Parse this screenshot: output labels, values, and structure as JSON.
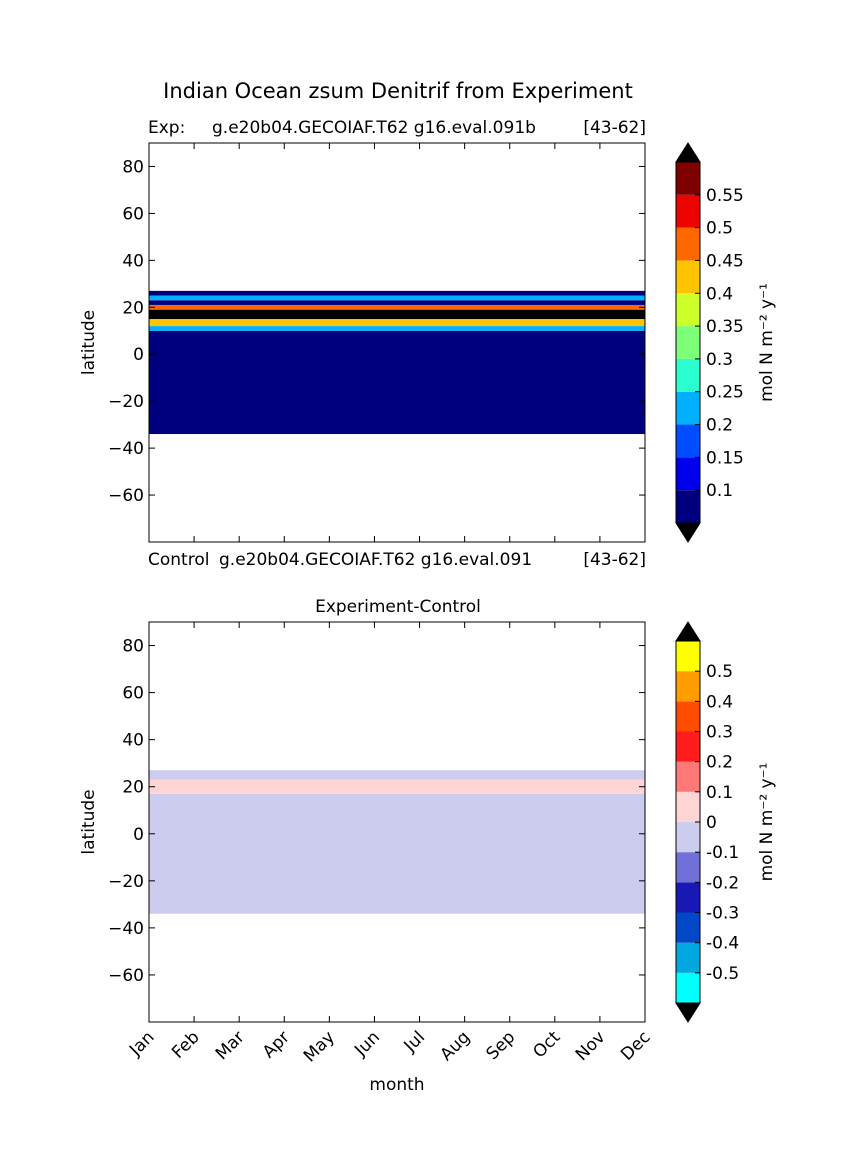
{
  "title": "Indian Ocean zsum Denitrif from Experiment",
  "panels": [
    {
      "id": "top",
      "header_left": "Exp:",
      "header_center": "g.e20b04.GECOIAF.T62 g16.eval.091b",
      "header_right": "[43-62]",
      "ylabel": "latitude"
    },
    {
      "id": "bottom",
      "header_left": "Control",
      "header_center": "g.e20b04.GECOIAF.T62 g16.eval.091",
      "header_right": "[43-62]",
      "title": "Experiment-Control",
      "ylabel": "latitude",
      "xlabel": "month"
    }
  ],
  "chart_data": [
    {
      "type": "heatmap",
      "subtitle": "Exp:    g.e20b04.GECOIAF.T62 g16.eval.091b [43-62]",
      "xlabel": "",
      "ylabel": "latitude",
      "x": [
        "Jan",
        "Feb",
        "Mar",
        "Apr",
        "May",
        "Jun",
        "Jul",
        "Aug",
        "Sep",
        "Oct",
        "Nov",
        "Dec"
      ],
      "ylim": [
        -80,
        90
      ],
      "yticks": [
        80,
        60,
        40,
        20,
        0,
        -20,
        -40,
        -60
      ],
      "data_lat_range": [
        -34,
        27
      ],
      "bands": [
        {
          "lat_min": -34,
          "lat_max": 10,
          "value": 0.05
        },
        {
          "lat_min": 10,
          "lat_max": 12,
          "value": 0.22
        },
        {
          "lat_min": 12,
          "lat_max": 15,
          "value": 0.4
        },
        {
          "lat_min": 15,
          "lat_max": 19,
          "value": 0.6
        },
        {
          "lat_min": 19,
          "lat_max": 21,
          "value": 0.45
        },
        {
          "lat_min": 21,
          "lat_max": 23,
          "value": 0.05
        },
        {
          "lat_min": 23,
          "lat_max": 25,
          "value": 0.22
        },
        {
          "lat_min": 25,
          "lat_max": 27,
          "value": 0.05
        }
      ],
      "colorbar": {
        "label": "mol N m⁻² y⁻¹",
        "ticks": [
          "0.1",
          "0.15",
          "0.2",
          "0.25",
          "0.3",
          "0.35",
          "0.4",
          "0.45",
          "0.5",
          "0.55"
        ],
        "levels": [
          0.05,
          0.1,
          0.15,
          0.2,
          0.25,
          0.3,
          0.35,
          0.4,
          0.45,
          0.5,
          0.55,
          0.6
        ],
        "colors": [
          "#00007f",
          "#0000ed",
          "#004dff",
          "#00b1ff",
          "#29ffce",
          "#7dff7a",
          "#ceff29",
          "#ffc400",
          "#ff6800",
          "#ed0400",
          "#7f0000"
        ],
        "extend_color": "#000000"
      }
    },
    {
      "type": "heatmap",
      "title": "Experiment-Control",
      "subtitle": "Control g.e20b04.GECOIAF.T62 g16.eval.091 [43-62]",
      "xlabel": "month",
      "ylabel": "latitude",
      "x": [
        "Jan",
        "Feb",
        "Mar",
        "Apr",
        "May",
        "Jun",
        "Jul",
        "Aug",
        "Sep",
        "Oct",
        "Nov",
        "Dec"
      ],
      "ylim": [
        -80,
        90
      ],
      "yticks": [
        80,
        60,
        40,
        20,
        0,
        -20,
        -40,
        -60
      ],
      "data_lat_range": [
        -34,
        27
      ],
      "bands": [
        {
          "lat_min": -34,
          "lat_max": 17,
          "value": -0.05
        },
        {
          "lat_min": 17,
          "lat_max": 23,
          "value": 0.05
        },
        {
          "lat_min": 23,
          "lat_max": 27,
          "value": -0.05
        }
      ],
      "colorbar": {
        "label": "mol N m⁻² y⁻¹",
        "ticks": [
          "-0.5",
          "-0.4",
          "-0.3",
          "-0.2",
          "-0.1",
          "0",
          "0.1",
          "0.2",
          "0.3",
          "0.4",
          "0.5"
        ],
        "levels": [
          -0.6,
          -0.5,
          -0.4,
          -0.3,
          -0.2,
          -0.1,
          0,
          0.1,
          0.2,
          0.3,
          0.4,
          0.5,
          0.6
        ],
        "colors": [
          "#00ffff",
          "#00a8e0",
          "#0048c8",
          "#1818b4",
          "#7070d8",
          "#ccccee",
          "#ffd4d4",
          "#ff7878",
          "#ff1c1c",
          "#ff4c00",
          "#ff9c00",
          "#ffff00"
        ],
        "extend_color": "#000000"
      }
    }
  ]
}
